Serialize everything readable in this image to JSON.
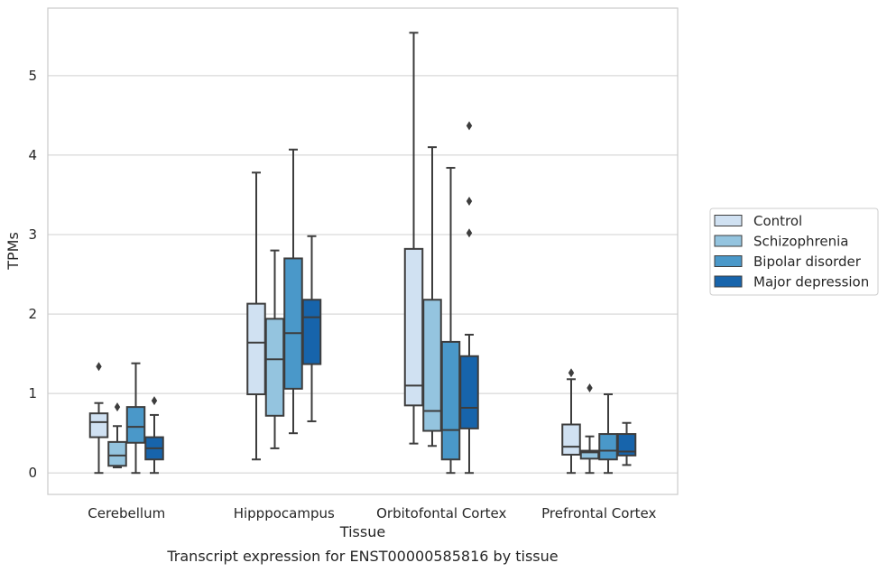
{
  "caption": "Transcript expression for ENST00000585816 by tissue",
  "chart_data": {
    "type": "boxplot",
    "xlabel": "Tissue",
    "ylabel": "TPMs",
    "ylim": [
      -0.27,
      5.85
    ],
    "yticks": [
      0,
      1,
      2,
      3,
      4,
      5
    ],
    "grid": "horizontal",
    "legend_position": "right",
    "categories": [
      "Cerebellum",
      "Hipppocampus",
      "Orbitofontal Cortex",
      "Prefrontal Cortex"
    ],
    "series": [
      {
        "name": "Control",
        "color": "#d0e1f2",
        "boxes": [
          {
            "whisker_low": 0.0,
            "q1": 0.45,
            "median": 0.64,
            "q3": 0.75,
            "whisker_high": 0.88,
            "outliers": [
              1.34
            ]
          },
          {
            "whisker_low": 0.17,
            "q1": 0.99,
            "median": 1.64,
            "q3": 2.13,
            "whisker_high": 3.78,
            "outliers": []
          },
          {
            "whisker_low": 0.37,
            "q1": 0.85,
            "median": 1.1,
            "q3": 2.82,
            "whisker_high": 5.54,
            "outliers": []
          },
          {
            "whisker_low": 0.0,
            "q1": 0.23,
            "median": 0.33,
            "q3": 0.61,
            "whisker_high": 1.18,
            "outliers": [
              1.26
            ]
          }
        ]
      },
      {
        "name": "Schizophrenia",
        "color": "#94c4df",
        "boxes": [
          {
            "whisker_low": 0.07,
            "q1": 0.09,
            "median": 0.22,
            "q3": 0.39,
            "whisker_high": 0.59,
            "outliers": [
              0.83
            ]
          },
          {
            "whisker_low": 0.31,
            "q1": 0.72,
            "median": 1.43,
            "q3": 1.94,
            "whisker_high": 2.8,
            "outliers": []
          },
          {
            "whisker_low": 0.34,
            "q1": 0.53,
            "median": 0.78,
            "q3": 2.18,
            "whisker_high": 4.1,
            "outliers": []
          },
          {
            "whisker_low": 0.0,
            "q1": 0.18,
            "median": 0.26,
            "q3": 0.28,
            "whisker_high": 0.46,
            "outliers": [
              1.07
            ]
          }
        ]
      },
      {
        "name": "Bipolar disorder",
        "color": "#4a98c9",
        "boxes": [
          {
            "whisker_low": 0.0,
            "q1": 0.38,
            "median": 0.58,
            "q3": 0.83,
            "whisker_high": 1.38,
            "outliers": []
          },
          {
            "whisker_low": 0.5,
            "q1": 1.06,
            "median": 1.76,
            "q3": 2.7,
            "whisker_high": 4.07,
            "outliers": []
          },
          {
            "whisker_low": 0.0,
            "q1": 0.17,
            "median": 0.54,
            "q3": 1.65,
            "whisker_high": 3.84,
            "outliers": []
          },
          {
            "whisker_low": 0.0,
            "q1": 0.17,
            "median": 0.28,
            "q3": 0.49,
            "whisker_high": 0.99,
            "outliers": []
          }
        ]
      },
      {
        "name": "Major depression",
        "color": "#1764ab",
        "boxes": [
          {
            "whisker_low": 0.0,
            "q1": 0.17,
            "median": 0.31,
            "q3": 0.45,
            "whisker_high": 0.73,
            "outliers": [
              0.91
            ]
          },
          {
            "whisker_low": 0.65,
            "q1": 1.37,
            "median": 1.96,
            "q3": 2.18,
            "whisker_high": 2.98,
            "outliers": []
          },
          {
            "whisker_low": 0.0,
            "q1": 0.56,
            "median": 0.82,
            "q3": 1.47,
            "whisker_high": 1.74,
            "outliers": [
              3.02,
              3.42,
              4.37
            ]
          },
          {
            "whisker_low": 0.1,
            "q1": 0.22,
            "median": 0.27,
            "q3": 0.49,
            "whisker_high": 0.63,
            "outliers": []
          }
        ]
      }
    ]
  }
}
